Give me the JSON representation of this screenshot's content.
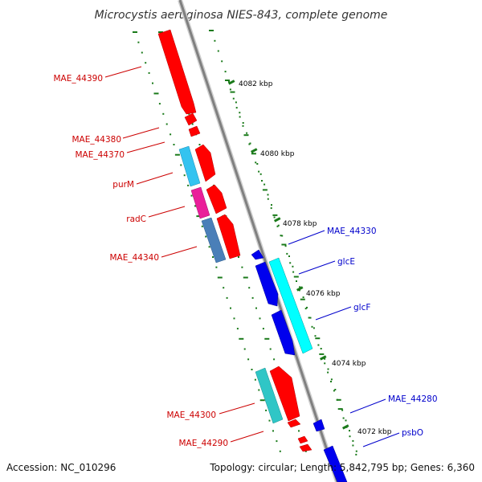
{
  "title": "Microcystis aeruginosa NIES-843, complete genome",
  "footer": {
    "accession": "Accession: NC_010296",
    "topology": "Topology: circular; Length: 5,842,795 bp; Genes: 6,360"
  },
  "colors": {
    "plus_strand_label": "#cc0000",
    "minus_strand_label": "#0000cc",
    "tick_mark": "#1a7a1a",
    "backbone": "#808080"
  },
  "ruler_ticks": [
    {
      "label": "4082 kbp"
    },
    {
      "label": "4080 kbp"
    },
    {
      "label": "4078 kbp"
    },
    {
      "label": "4076 kbp"
    },
    {
      "label": "4074 kbp"
    },
    {
      "label": "4072 kbp"
    }
  ],
  "gene_labels": [
    {
      "name": "MAE_44390",
      "strand": "plus"
    },
    {
      "name": "MAE_44380",
      "strand": "plus"
    },
    {
      "name": "MAE_44370",
      "strand": "plus"
    },
    {
      "name": "purM",
      "strand": "plus"
    },
    {
      "name": "radC",
      "strand": "plus"
    },
    {
      "name": "MAE_44340",
      "strand": "plus"
    },
    {
      "name": "MAE_44300",
      "strand": "plus"
    },
    {
      "name": "MAE_44290",
      "strand": "plus"
    },
    {
      "name": "MAE_44330",
      "strand": "minus"
    },
    {
      "name": "glcE",
      "strand": "minus"
    },
    {
      "name": "glcF",
      "strand": "minus"
    },
    {
      "name": "MAE_44280",
      "strand": "minus"
    },
    {
      "name": "psbO",
      "strand": "minus"
    }
  ]
}
